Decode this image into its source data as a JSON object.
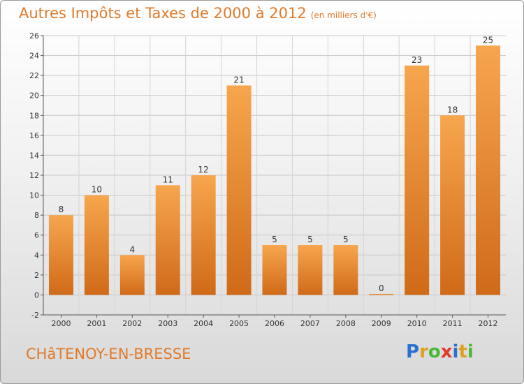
{
  "header": {
    "title": "Autres Impôts et Taxes de 2000 à 2012",
    "unit": "(en milliers d'€)"
  },
  "footer": {
    "city": "CHâTENOY-EN-BRESSE",
    "brand": "Proxiti",
    "brand_colors": [
      "#2b6fd1",
      "#e0a020",
      "#49b83a",
      "#e03a2a",
      "#2b6fd1",
      "#e0a020",
      "#49b83a"
    ]
  },
  "chart_data": {
    "type": "bar",
    "title": "Autres Impôts et Taxes de 2000 à 2012",
    "subtitle": "(en milliers d'€)",
    "xlabel": "",
    "ylabel": "",
    "categories": [
      "2000",
      "2001",
      "2002",
      "2003",
      "2004",
      "2005",
      "2006",
      "2007",
      "2008",
      "2009",
      "2010",
      "2011",
      "2012"
    ],
    "values": [
      8,
      10,
      4,
      11,
      12,
      21,
      5,
      5,
      5,
      0,
      23,
      18,
      25
    ],
    "ylim": [
      -2,
      26
    ],
    "yticks": [
      -2,
      0,
      2,
      4,
      6,
      8,
      10,
      12,
      14,
      16,
      18,
      20,
      22,
      24,
      26
    ],
    "grid": true,
    "bar_color_top": "#f7a64e",
    "bar_color_bottom": "#d06a18"
  }
}
